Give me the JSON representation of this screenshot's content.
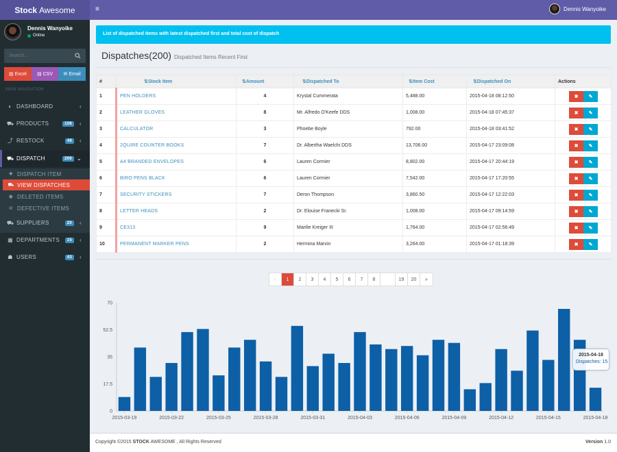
{
  "app": {
    "logo_bold": "Stock",
    "logo_rest": "Awesome",
    "menu_toggle": "≡"
  },
  "topbar": {
    "user_name": "Dennis Wanyoike"
  },
  "sidebar": {
    "user_name": "Dennis Wanyoike",
    "user_status": "Online",
    "search_placeholder": "Search...",
    "exports": [
      {
        "label": "Excel",
        "color": "#dd4b39"
      },
      {
        "label": "CSV",
        "color": "#9b59b6"
      },
      {
        "label": "Email",
        "color": "#3c8dbc"
      }
    ],
    "section_header": "MAIN NAVIGATION",
    "nav": [
      {
        "label": "DASHBOARD",
        "icon": "dashboard-icon",
        "badge": ""
      },
      {
        "label": "PRODUCTS",
        "icon": "cart-icon",
        "badge": "106"
      },
      {
        "label": "RESTOCK",
        "icon": "restock-icon",
        "badge": "49"
      },
      {
        "label": "DISPATCH",
        "icon": "truck-icon",
        "badge": "200"
      },
      {
        "label": "SUPPLIERS",
        "icon": "truck-icon",
        "badge": "20"
      },
      {
        "label": "DEPARTMENTS",
        "icon": "building-icon",
        "badge": "15"
      },
      {
        "label": "USERS",
        "icon": "users-icon",
        "badge": "43"
      }
    ],
    "dispatch_sub": [
      {
        "label": "DISPATCH ITEM",
        "icon": "plus-icon"
      },
      {
        "label": "VIEW DISPATCHES",
        "icon": "cart-icon"
      },
      {
        "label": "DELETED ITEMS",
        "icon": "eye-icon"
      },
      {
        "label": "DEFECTIVE ITEMS",
        "icon": "ban-icon"
      }
    ]
  },
  "main": {
    "alert": "List of dispatched items with latest dispatched first and total cost of dispatch",
    "title": "Dispatches(200)",
    "subtitle": "Dispatched Items Recent First"
  },
  "table": {
    "headers": [
      "#",
      "Stock Item",
      "Amount",
      "Dispatched To",
      "Item Cost",
      "Dispatched On",
      "Actions"
    ],
    "rows": [
      {
        "n": "1",
        "item": "PEN HOLDERS",
        "amount": "4",
        "to": "Krystal Cummerata",
        "cost": "5,488.00",
        "on": "2015-04-18 08:12:50"
      },
      {
        "n": "2",
        "item": "LEATHER GLOVES",
        "amount": "8",
        "to": "Mr. Alfredo O'Keefe DDS",
        "cost": "1,008.00",
        "on": "2015-04-18 07:45:37"
      },
      {
        "n": "3",
        "item": "CALCULATOR",
        "amount": "3",
        "to": "Phoebe Boyle",
        "cost": "792.00",
        "on": "2015-04-18 03:41:52"
      },
      {
        "n": "4",
        "item": "2QUIRE COUNTER BOOKS",
        "amount": "7",
        "to": "Dr. Albertha Waelchi DDS",
        "cost": "13,706.00",
        "on": "2015-04-17 23:09:08"
      },
      {
        "n": "5",
        "item": "A4 BRANDED ENVELOPES",
        "amount": "6",
        "to": "Lauren Cormier",
        "cost": "8,802.00",
        "on": "2015-04-17 20:44:19"
      },
      {
        "n": "6",
        "item": "BIRO PENS BLACK",
        "amount": "6",
        "to": "Lauren Cormier",
        "cost": "7,542.00",
        "on": "2015-04-17 17:20:55"
      },
      {
        "n": "7",
        "item": "SECURITY STICKERS",
        "amount": "7",
        "to": "Deron Thompson",
        "cost": "3,860.50",
        "on": "2015-04-17 12:22:03"
      },
      {
        "n": "8",
        "item": "LETTER HEADS",
        "amount": "2",
        "to": "Dr. Elouise Franecki Sr.",
        "cost": "1,008.00",
        "on": "2015-04-17 09:14:59"
      },
      {
        "n": "9",
        "item": "CE313",
        "amount": "9",
        "to": "Marilie Kreiger III",
        "cost": "1,764.00",
        "on": "2015-04-17 02:56:49"
      },
      {
        "n": "10",
        "item": "PERMANENT MARKER PENS",
        "amount": "2",
        "to": "Hermina Marvin",
        "cost": "3,264.00",
        "on": "2015-04-17 01:18:39"
      }
    ]
  },
  "pagination": {
    "prev": "‹",
    "pages": [
      "1",
      "2",
      "3",
      "4",
      "5",
      "6",
      "7",
      "8",
      "",
      "19",
      "20"
    ],
    "next": "»",
    "active": "1"
  },
  "chart_data": {
    "type": "bar",
    "color": "#0d5fa6",
    "x_tick_labels": [
      "2015-03-19",
      "2015-03-22",
      "2015-03-25",
      "2015-03-28",
      "2015-03-31",
      "2015-04-03",
      "2015-04-06",
      "2015-04-09",
      "2015-04-12",
      "2015-04-15",
      "2015-04-18"
    ],
    "categories": [
      "2015-03-19",
      "2015-03-20",
      "2015-03-21",
      "2015-03-22",
      "2015-03-23",
      "2015-03-24",
      "2015-03-25",
      "2015-03-26",
      "2015-03-27",
      "2015-03-28",
      "2015-03-29",
      "2015-03-30",
      "2015-03-31",
      "2015-04-01",
      "2015-04-02",
      "2015-04-03",
      "2015-04-04",
      "2015-04-05",
      "2015-04-06",
      "2015-04-07",
      "2015-04-08",
      "2015-04-09",
      "2015-04-10",
      "2015-04-11",
      "2015-04-12",
      "2015-04-13",
      "2015-04-14",
      "2015-04-15",
      "2015-04-16",
      "2015-04-17",
      "2015-04-18"
    ],
    "values": [
      9,
      41,
      22,
      31,
      51,
      53,
      23,
      41,
      46,
      32,
      22,
      55,
      29,
      37,
      31,
      51,
      43,
      40,
      42,
      36,
      46,
      44,
      14,
      18,
      40,
      26,
      52,
      33,
      66,
      46,
      15
    ],
    "yticks": [
      0,
      17.5,
      35,
      52.5,
      70
    ],
    "ylim": [
      0,
      70
    ],
    "tooltip": {
      "date": "2015-04-18",
      "series": "Dispatches",
      "value": "15"
    }
  },
  "footer": {
    "copyright": "Copyright ©2015",
    "brand": "STOCK",
    "brand_rest": " AWESOME , All Rights Reserved",
    "version_label": "Version",
    "version": "1.0"
  }
}
